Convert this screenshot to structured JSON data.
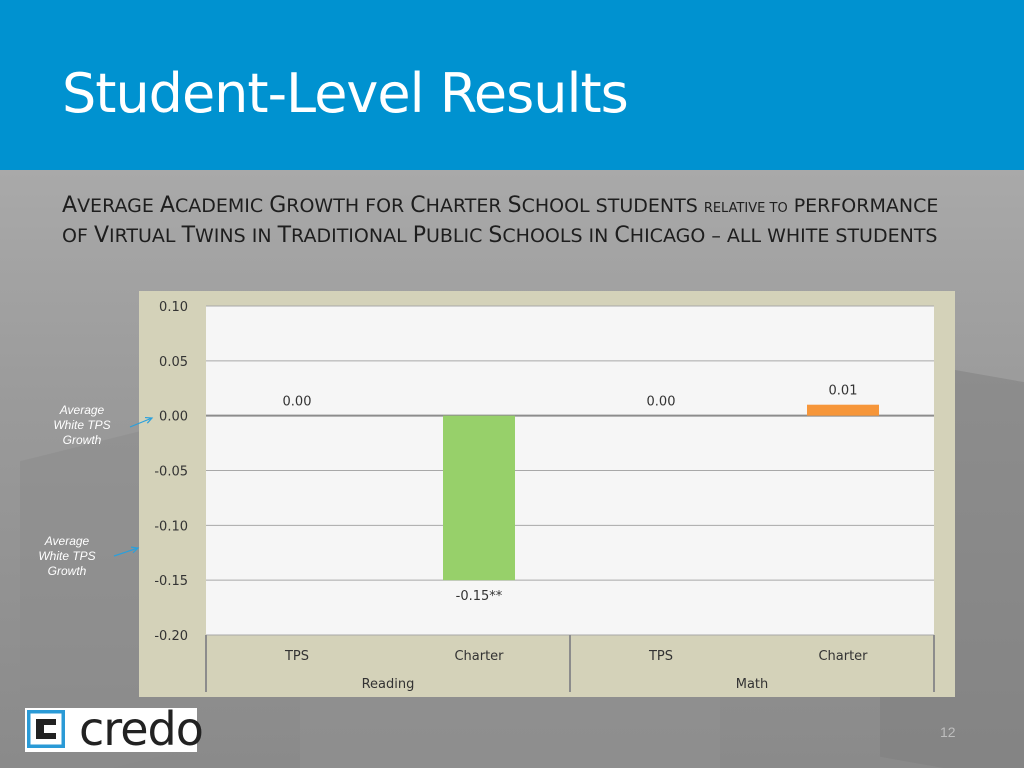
{
  "slide": {
    "title": "Student-Level Results",
    "subtitle_parts": [
      {
        "text": "A",
        "cls": "cap"
      },
      {
        "text": "VERAGE ",
        "cls": ""
      },
      {
        "text": "A",
        "cls": "cap"
      },
      {
        "text": "CADEMIC ",
        "cls": ""
      },
      {
        "text": "G",
        "cls": "cap"
      },
      {
        "text": "ROWTH FOR ",
        "cls": ""
      },
      {
        "text": "C",
        "cls": "cap"
      },
      {
        "text": "HARTER ",
        "cls": ""
      },
      {
        "text": "S",
        "cls": "cap"
      },
      {
        "text": "CHOOL STUDENTS ",
        "cls": ""
      },
      {
        "text": "RELATIVE TO",
        "cls": "sm"
      },
      {
        "text": " PERFORMANCE OF ",
        "cls": ""
      },
      {
        "text": "V",
        "cls": "cap"
      },
      {
        "text": "IRTUAL ",
        "cls": ""
      },
      {
        "text": "T",
        "cls": "cap"
      },
      {
        "text": "WINS IN ",
        "cls": ""
      },
      {
        "text": "T",
        "cls": "cap"
      },
      {
        "text": "RADITIONAL ",
        "cls": ""
      },
      {
        "text": "P",
        "cls": "cap"
      },
      {
        "text": "UBLIC ",
        "cls": ""
      },
      {
        "text": "S",
        "cls": "cap"
      },
      {
        "text": "CHOOLS IN ",
        "cls": ""
      },
      {
        "text": "C",
        "cls": "cap"
      },
      {
        "text": "HICAGO – ALL WHITE STUDENTS",
        "cls": ""
      }
    ],
    "annotation_1": "Average White TPS Growth",
    "annotation_2": "Average White TPS Growth",
    "logo_text": "credo",
    "page_number": "12"
  },
  "colors": {
    "header": "#0092d0",
    "bar_reading_charter": "#97d06a",
    "bar_math_charter": "#f6963a",
    "plot_bg": "#f6f6f6",
    "frame_bg": "#d4d2b9"
  },
  "chart_data": {
    "type": "bar",
    "groups": [
      "Reading",
      "Math"
    ],
    "categories": [
      "TPS",
      "Charter",
      "TPS",
      "Charter"
    ],
    "values": [
      0.0,
      -0.15,
      0.0,
      0.01
    ],
    "data_labels": [
      "0.00",
      "-0.15**",
      "0.00",
      "0.01"
    ],
    "bar_colors": [
      "none",
      "#97d06a",
      "none",
      "#f6963a"
    ],
    "ylim": [
      -0.2,
      0.1
    ],
    "yticks": [
      0.1,
      0.05,
      0.0,
      -0.05,
      -0.1,
      -0.15,
      -0.2
    ],
    "ytick_labels": [
      "0.10",
      "0.05",
      "0.00",
      "-0.05",
      "-0.10",
      "-0.15",
      "-0.20"
    ],
    "grid": true
  }
}
